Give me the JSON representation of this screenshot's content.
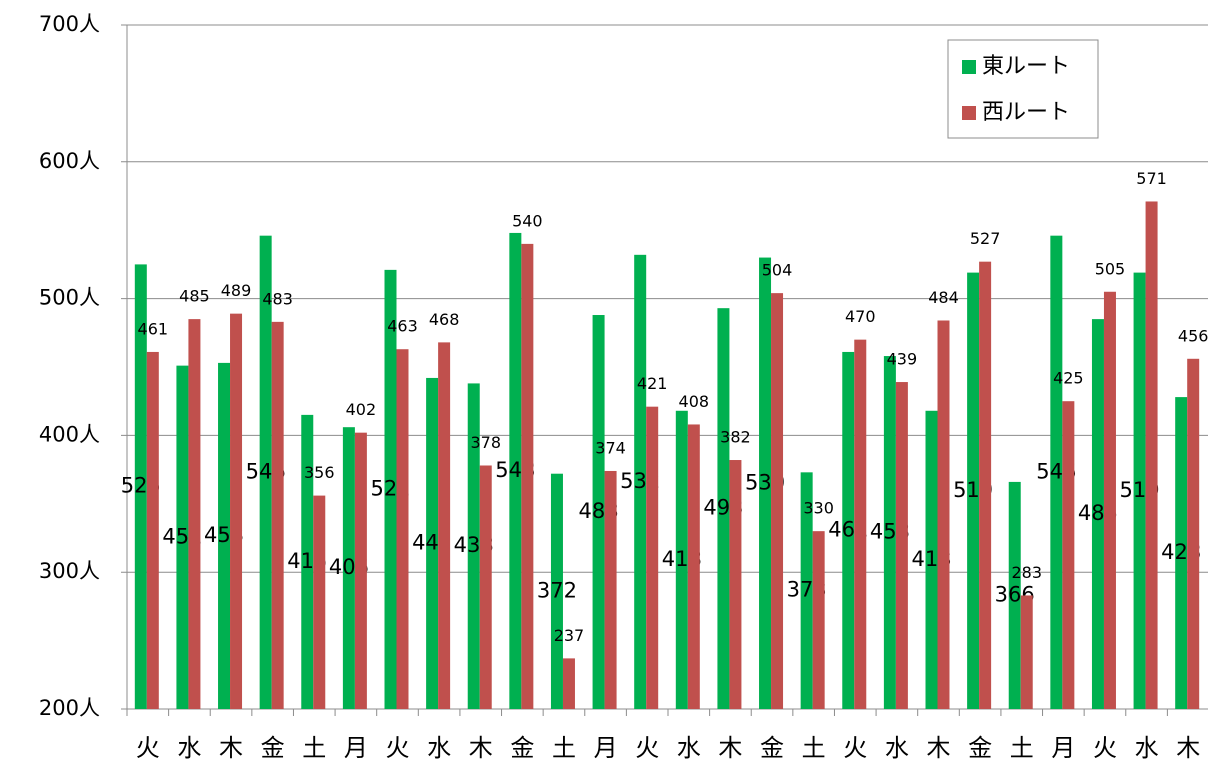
{
  "chart_data": {
    "type": "bar",
    "categories": [
      "火",
      "水",
      "木",
      "金",
      "土",
      "月",
      "火",
      "水",
      "木",
      "金",
      "土",
      "月",
      "火",
      "水",
      "木",
      "金",
      "土",
      "火",
      "水",
      "木",
      "金",
      "土",
      "月",
      "火",
      "水",
      "木"
    ],
    "series": [
      {
        "name": "東ルート",
        "color": "#00b050",
        "values": [
          525,
          451,
          453,
          546,
          415,
          406,
          521,
          442,
          438,
          548,
          372,
          488,
          532,
          418,
          493,
          530,
          373,
          461,
          458,
          418,
          519,
          366,
          546,
          485,
          519,
          428
        ]
      },
      {
        "name": "西ルート",
        "color": "#c0504d",
        "values": [
          461,
          485,
          489,
          483,
          356,
          402,
          463,
          468,
          378,
          540,
          237,
          374,
          421,
          408,
          382,
          504,
          330,
          470,
          439,
          484,
          527,
          283,
          425,
          505,
          571,
          456
        ]
      }
    ],
    "ylim": [
      200,
      700
    ],
    "yticks": [
      {
        "value": 200,
        "label": "200人"
      },
      {
        "value": 300,
        "label": "300人"
      },
      {
        "value": 400,
        "label": "400人"
      },
      {
        "value": 500,
        "label": "500人"
      },
      {
        "value": 600,
        "label": "600人"
      },
      {
        "value": 700,
        "label": "700人"
      }
    ],
    "grid": true,
    "legend": "upper right"
  }
}
